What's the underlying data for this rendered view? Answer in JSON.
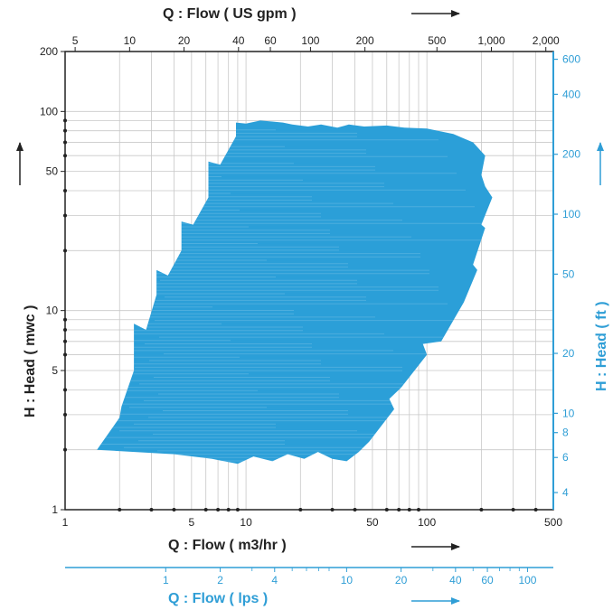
{
  "chart_data": {
    "type": "area",
    "title": "",
    "x_top": {
      "label": "Q : Flow ( US gpm )",
      "scale": "log",
      "range": [
        4.4,
        2200
      ],
      "ticks": [
        {
          "value": 5,
          "label": "5"
        },
        {
          "value": 10,
          "label": "10"
        },
        {
          "value": 20,
          "label": "20"
        },
        {
          "value": 40,
          "label": "40"
        },
        {
          "value": 60,
          "label": "60"
        },
        {
          "value": 100,
          "label": "100"
        },
        {
          "value": 200,
          "label": "200"
        },
        {
          "value": 500,
          "label": "500"
        },
        {
          "value": 1000,
          "label": "1,000"
        },
        {
          "value": 2000,
          "label": "2,000"
        }
      ]
    },
    "x_bottom": {
      "label": "Q : Flow ( m3/hr )",
      "scale": "log",
      "range": [
        1,
        500
      ],
      "ticks": [
        {
          "value": 1,
          "label": "1"
        },
        {
          "value": 5,
          "label": "5"
        },
        {
          "value": 10,
          "label": "10"
        },
        {
          "value": 50,
          "label": "50"
        },
        {
          "value": 100,
          "label": "100"
        },
        {
          "value": 500,
          "label": "500"
        }
      ]
    },
    "x_bottom_secondary": {
      "label": "Q : Flow ( lps )",
      "scale": "log",
      "ticks": [
        {
          "value": 1,
          "label": "1"
        },
        {
          "value": 2,
          "label": "2"
        },
        {
          "value": 4,
          "label": "4"
        },
        {
          "value": 10,
          "label": "10"
        },
        {
          "value": 20,
          "label": "20"
        },
        {
          "value": 40,
          "label": "40"
        },
        {
          "value": 60,
          "label": "60"
        },
        {
          "value": 100,
          "label": "100"
        }
      ]
    },
    "y_left": {
      "label": "H : Head ( mwc )",
      "scale": "log",
      "range": [
        1,
        200
      ],
      "ticks": [
        {
          "value": 1,
          "label": "1"
        },
        {
          "value": 5,
          "label": "5"
        },
        {
          "value": 10,
          "label": "10"
        },
        {
          "value": 50,
          "label": "50"
        },
        {
          "value": 100,
          "label": "100"
        },
        {
          "value": 200,
          "label": "200"
        }
      ]
    },
    "y_right": {
      "label": "H : Head ( ft )",
      "scale": "log",
      "ticks": [
        {
          "value": 4,
          "label": "4"
        },
        {
          "value": 6,
          "label": "6"
        },
        {
          "value": 8,
          "label": "8"
        },
        {
          "value": 10,
          "label": "10"
        },
        {
          "value": 20,
          "label": "20"
        },
        {
          "value": 50,
          "label": "50"
        },
        {
          "value": 100,
          "label": "100"
        },
        {
          "value": 200,
          "label": "200"
        },
        {
          "value": 400,
          "label": "400"
        },
        {
          "value": 600,
          "label": "600"
        }
      ]
    },
    "grid": true,
    "coverage_color": "#2b9fd8",
    "coverage_region": [
      [
        1.5,
        2.0
      ],
      [
        2.0,
        2.9
      ],
      [
        2.05,
        3.3
      ],
      [
        2.4,
        5.0
      ],
      [
        2.4,
        8.6
      ],
      [
        2.8,
        8.0
      ],
      [
        3.2,
        12.0
      ],
      [
        3.2,
        16.0
      ],
      [
        3.7,
        15.0
      ],
      [
        4.4,
        20.0
      ],
      [
        4.4,
        28.0
      ],
      [
        5.1,
        27.0
      ],
      [
        6.2,
        37.0
      ],
      [
        6.2,
        56.0
      ],
      [
        7.2,
        54.0
      ],
      [
        8.8,
        75.0
      ],
      [
        8.8,
        88.0
      ],
      [
        10.0,
        87.0
      ],
      [
        12.0,
        90.0
      ],
      [
        14.0,
        89.0
      ],
      [
        16.0,
        88.0
      ],
      [
        18.0,
        86.0
      ],
      [
        22.0,
        84.0
      ],
      [
        26.0,
        86.0
      ],
      [
        32.0,
        83.0
      ],
      [
        37.0,
        86.0
      ],
      [
        45.0,
        84.0
      ],
      [
        60.0,
        85.0
      ],
      [
        75.0,
        83.0
      ],
      [
        100.0,
        82.0
      ],
      [
        140.0,
        77.0
      ],
      [
        180.0,
        70.0
      ],
      [
        210.0,
        60.0
      ],
      [
        200.0,
        48.0
      ],
      [
        210.0,
        42.0
      ],
      [
        230.0,
        37.0
      ],
      [
        200.0,
        27.0
      ],
      [
        210.0,
        26.0
      ],
      [
        180.0,
        17.0
      ],
      [
        190.0,
        16.0
      ],
      [
        160.0,
        11.0
      ],
      [
        120.0,
        7.0
      ],
      [
        95.0,
        6.8
      ],
      [
        100.0,
        6.0
      ],
      [
        72.0,
        4.1
      ],
      [
        62.0,
        3.6
      ],
      [
        66.0,
        3.2
      ],
      [
        48.0,
        2.2
      ],
      [
        42.0,
        1.95
      ],
      [
        36.0,
        1.75
      ],
      [
        30.0,
        1.8
      ],
      [
        25.0,
        1.95
      ],
      [
        21.0,
        1.8
      ],
      [
        17.0,
        1.9
      ],
      [
        14.0,
        1.75
      ],
      [
        11.0,
        1.85
      ],
      [
        9.0,
        1.7
      ],
      [
        6.5,
        1.8
      ],
      [
        4.0,
        1.9
      ],
      [
        1.5,
        2.0
      ]
    ]
  }
}
